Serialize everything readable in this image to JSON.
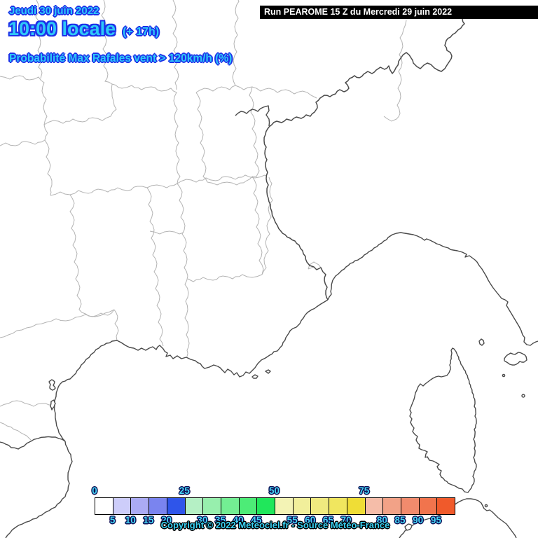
{
  "header": {
    "date_label": "Jeudi 30 juin 2022",
    "time_label": "10:00 locale",
    "offset_label": "(+ 17h)",
    "variable_label": "Probabilité Max Rafales vent > 120km/h (%)",
    "run_label": "Run PEAROME 15 Z du Mercredi 29 juin 2022"
  },
  "footer": {
    "copyright": "Copyright © 2022 Meteociel.fr - Source Météo-France"
  },
  "legend": {
    "unit": "%",
    "cell_lower_bounds": [
      0,
      5,
      10,
      15,
      20,
      25,
      30,
      35,
      40,
      45,
      50,
      55,
      60,
      65,
      70,
      75,
      80,
      85,
      90,
      95
    ],
    "cell_colors": [
      "#ffffff",
      "#cdcdfa",
      "#ababf4",
      "#7a84ef",
      "#2f55ea",
      "#b5f0c5",
      "#97efad",
      "#73ee93",
      "#4dec77",
      "#20e75b",
      "#f3f3b5",
      "#f1ef9b",
      "#f0ea7f",
      "#f0e65f",
      "#efdd36",
      "#f5bda9",
      "#f2a287",
      "#f18b6d",
      "#f1744d",
      "#f05a2b"
    ],
    "ticks_above": [
      {
        "label": "0",
        "boundary": 0
      },
      {
        "label": "25",
        "boundary": 5
      },
      {
        "label": "50",
        "boundary": 10
      },
      {
        "label": "75",
        "boundary": 15
      }
    ],
    "ticks_below": [
      {
        "label": "5",
        "boundary": 1
      },
      {
        "label": "10",
        "boundary": 2
      },
      {
        "label": "15",
        "boundary": 3
      },
      {
        "label": "20",
        "boundary": 4
      },
      {
        "label": "30",
        "boundary": 6
      },
      {
        "label": "35",
        "boundary": 7
      },
      {
        "label": "40",
        "boundary": 8
      },
      {
        "label": "45",
        "boundary": 9
      },
      {
        "label": "55",
        "boundary": 11
      },
      {
        "label": "60",
        "boundary": 12
      },
      {
        "label": "65",
        "boundary": 13
      },
      {
        "label": "70",
        "boundary": 14
      },
      {
        "label": "80",
        "boundary": 16
      },
      {
        "label": "85",
        "boundary": 17
      },
      {
        "label": "90",
        "boundary": 18
      },
      {
        "label": "95",
        "boundary": 19
      }
    ]
  },
  "colors": {
    "title_fill": "#2ec9f8",
    "title_outline": "#1d31e8",
    "tick_fill": "#46d8f6",
    "tick_outline": "#0c0c52",
    "copyright_fill": "#3ad2f5",
    "copyright_outline": "#000000",
    "run_box_bg": "#000000",
    "run_box_text": "#ffffff",
    "department_border": "#b3b3b3",
    "coastline": "#4a4a4a",
    "sea_and_land": "#ffffff"
  }
}
